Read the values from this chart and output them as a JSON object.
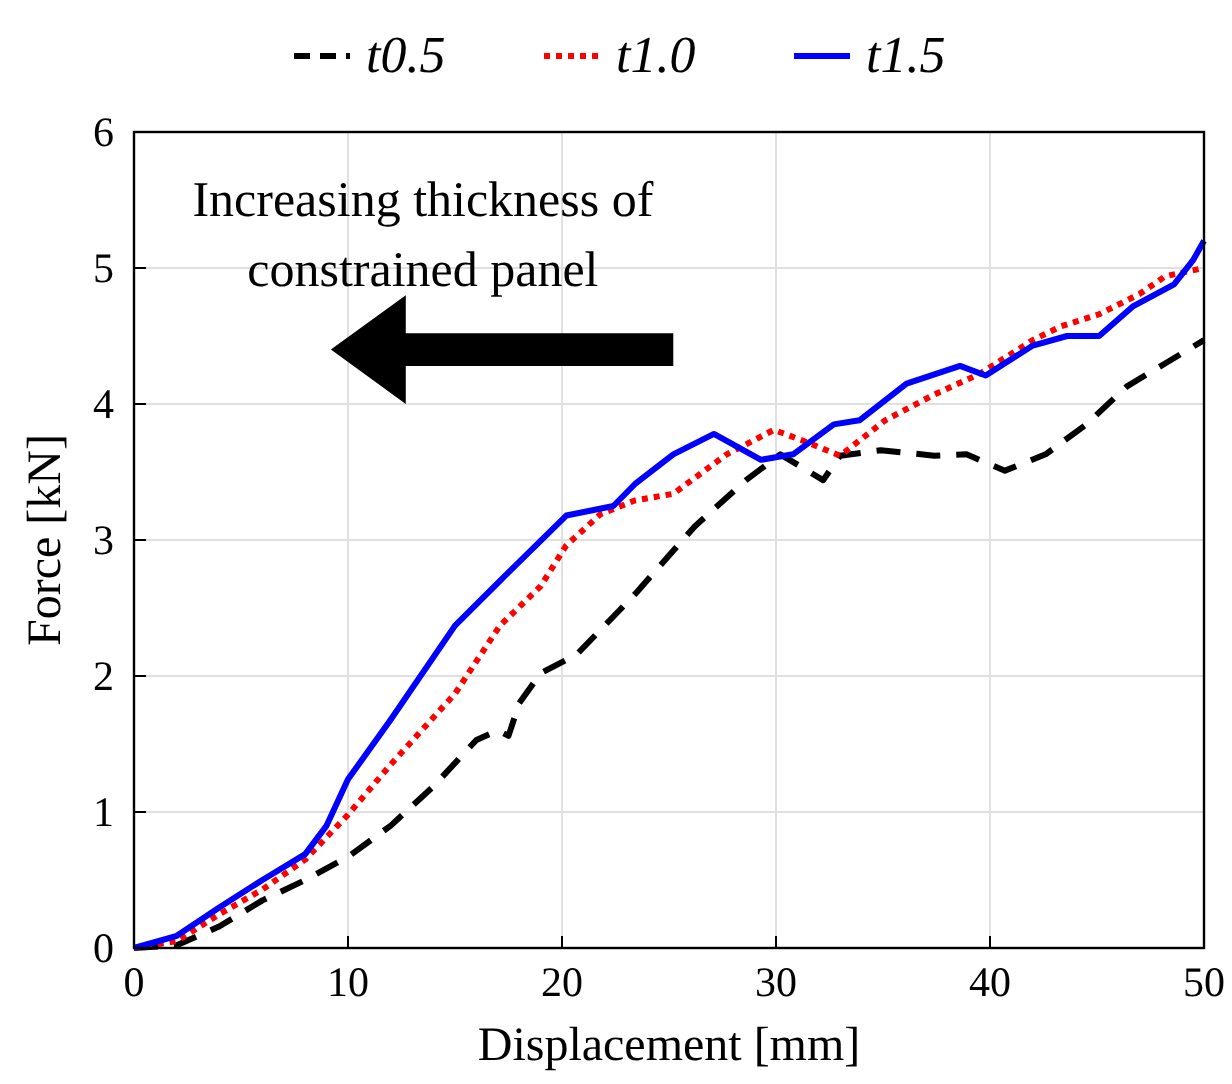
{
  "chart_data": {
    "type": "line",
    "xlabel": "Displacement [mm]",
    "ylabel": "Force [kN]",
    "xlim": [
      0,
      50
    ],
    "ylim": [
      0,
      6
    ],
    "xticks": [
      0,
      10,
      20,
      30,
      40,
      50
    ],
    "yticks": [
      0,
      1,
      2,
      3,
      4,
      5,
      6
    ],
    "grid": true,
    "legend": "top",
    "marker": "none",
    "annotations": [
      "Increasing thickness of constrained panel"
    ],
    "series": [
      {
        "name": "t0.5",
        "color": "#000000",
        "line_style": "dashed",
        "x": [
          0,
          2,
          4,
          6,
          8,
          10,
          12,
          14,
          16,
          17,
          17.5,
          18,
          19,
          20.7,
          23.4,
          26.2,
          28.6,
          30.2,
          32.2,
          33,
          34.9,
          37.4,
          38.9,
          40.7,
          42.6,
          44.5,
          46.4,
          48.2,
          50
        ],
        "values": [
          0,
          0.02,
          0.16,
          0.35,
          0.5,
          0.67,
          0.9,
          1.19,
          1.53,
          1.6,
          1.56,
          1.8,
          2.02,
          2.16,
          2.6,
          3.1,
          3.44,
          3.63,
          3.44,
          3.62,
          3.66,
          3.62,
          3.63,
          3.51,
          3.63,
          3.85,
          4.13,
          4.3,
          4.47
        ]
      },
      {
        "name": "t1.0",
        "color": "#ff0000",
        "line_style": "dotted",
        "x": [
          0,
          2,
          4,
          6,
          8,
          10,
          12,
          15,
          17.1,
          19,
          20.2,
          21.8,
          23.4,
          25.2,
          27.7,
          29.9,
          31.1,
          33,
          35.1,
          37.4,
          39.5,
          42,
          43.3,
          45.1,
          47,
          48.2,
          50
        ],
        "values": [
          0,
          0.05,
          0.25,
          0.43,
          0.65,
          0.98,
          1.35,
          1.87,
          2.37,
          2.66,
          2.96,
          3.19,
          3.29,
          3.34,
          3.63,
          3.81,
          3.74,
          3.62,
          3.88,
          4.07,
          4.22,
          4.47,
          4.57,
          4.66,
          4.81,
          4.94,
          5.0
        ]
      },
      {
        "name": "t1.5",
        "color": "#0000ff",
        "line_style": "solid",
        "x": [
          0,
          2,
          4,
          6,
          8,
          9,
          10,
          12,
          15,
          17.1,
          20.2,
          22.4,
          23.4,
          25.2,
          27.1,
          29.3,
          30.8,
          32.7,
          33.9,
          36.1,
          38.6,
          39.8,
          42,
          43.6,
          45.1,
          46.7,
          48.6,
          49.5,
          50
        ],
        "values": [
          0,
          0.09,
          0.3,
          0.5,
          0.69,
          0.9,
          1.24,
          1.68,
          2.37,
          2.7,
          3.18,
          3.25,
          3.41,
          3.63,
          3.78,
          3.59,
          3.63,
          3.85,
          3.88,
          4.15,
          4.28,
          4.21,
          4.43,
          4.5,
          4.5,
          4.72,
          4.88,
          5.06,
          5.2
        ]
      }
    ]
  }
}
